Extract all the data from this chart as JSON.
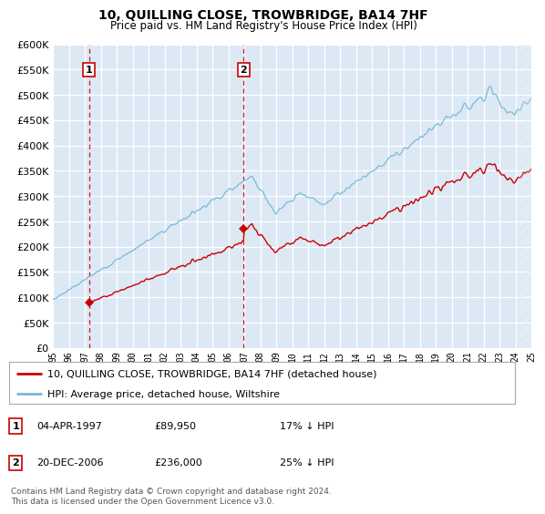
{
  "title": "10, QUILLING CLOSE, TROWBRIDGE, BA14 7HF",
  "subtitle": "Price paid vs. HM Land Registry's House Price Index (HPI)",
  "x_start_year": 1995,
  "x_end_year": 2025,
  "y_min": 0,
  "y_max": 600000,
  "y_ticks": [
    0,
    50000,
    100000,
    150000,
    200000,
    250000,
    300000,
    350000,
    400000,
    450000,
    500000,
    550000,
    600000
  ],
  "hpi_color": "#7ab8d9",
  "price_color": "#cc0000",
  "sale1_price": 89950,
  "sale1_year": 1997.27,
  "sale2_price": 236000,
  "sale2_year": 2006.97,
  "legend_line1": "10, QUILLING CLOSE, TROWBRIDGE, BA14 7HF (detached house)",
  "legend_line2": "HPI: Average price, detached house, Wiltshire",
  "footer": "Contains HM Land Registry data © Crown copyright and database right 2024.\nThis data is licensed under the Open Government Licence v3.0.",
  "plot_bg_color": "#dce9f5",
  "grid_color": "#ffffff",
  "annotation_box_color": "#cc0000",
  "sale1_date": "04-APR-1997",
  "sale1_pct": "17% ↓ HPI",
  "sale2_date": "20-DEC-2006",
  "sale2_pct": "25% ↓ HPI",
  "sale1_price_str": "£89,950",
  "sale2_price_str": "£236,000"
}
